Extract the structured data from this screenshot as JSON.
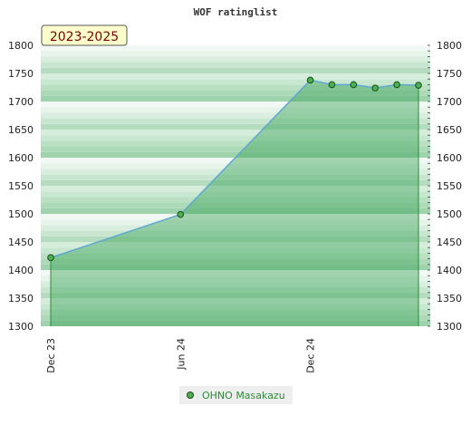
{
  "chart_data": {
    "type": "area",
    "title": "WOF ratinglist",
    "period_label": "2023-2025",
    "x_tick_labels": [
      "Dec 23",
      "Jun 24",
      "Dec 24"
    ],
    "y_ticks": [
      1300,
      1350,
      1400,
      1450,
      1500,
      1550,
      1600,
      1650,
      1700,
      1750,
      1800
    ],
    "ylim": [
      1300,
      1800
    ],
    "grid": true,
    "legend_position": "bottom",
    "series": [
      {
        "name": "OHNO Masakazu",
        "x": [
          "2023-12",
          "2024-06",
          "2024-12",
          "2025-01",
          "2025-02",
          "2025-03",
          "2025-04",
          "2025-05"
        ],
        "values": [
          1422,
          1499,
          1738,
          1730,
          1730,
          1724,
          1730,
          1729
        ]
      }
    ],
    "colors": {
      "line": "#5fa8d3",
      "area": "#3fa45a",
      "marker": "#4caf50",
      "band_dark": "#b5dcbf",
      "band_light": "#f2f9f4"
    }
  }
}
